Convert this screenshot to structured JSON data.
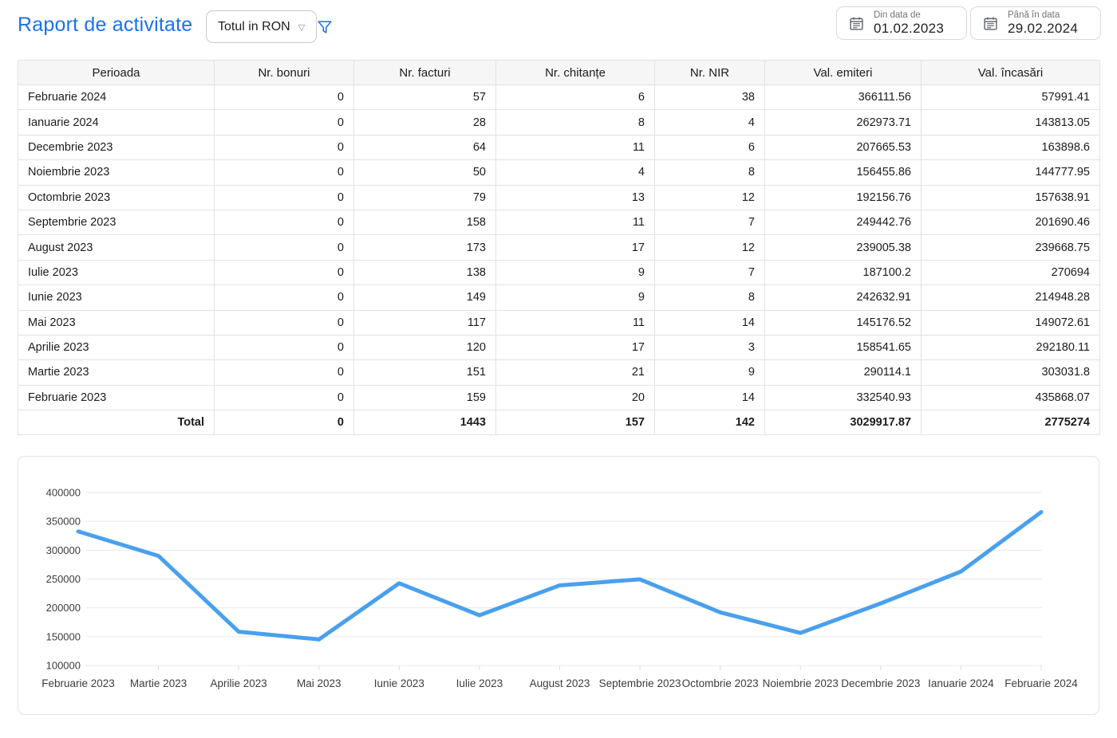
{
  "header": {
    "title": "Raport de activitate",
    "currency_dropdown": {
      "value": "Totul in RON"
    },
    "date_from": {
      "label": "Din data de",
      "value": "01.02.2023"
    },
    "date_to": {
      "label": "Până în data",
      "value": "29.02.2024"
    }
  },
  "icons": {
    "filter": "funnel-outline",
    "calendar": "calendar-outline",
    "chevron": "▽"
  },
  "colors": {
    "accent": "#1a73e8",
    "chart_line": "#49a0ed",
    "table_border": "#e2e2e2",
    "header_bg": "#f6f6f6"
  },
  "table": {
    "columns": [
      "Perioada",
      "Nr. bonuri",
      "Nr. facturi",
      "Nr. chitanțe",
      "Nr. NIR",
      "Val. emiteri",
      "Val. încasări"
    ],
    "rows": [
      [
        "Februarie 2024",
        "0",
        "57",
        "6",
        "38",
        "366111.56",
        "57991.41"
      ],
      [
        "Ianuarie 2024",
        "0",
        "28",
        "8",
        "4",
        "262973.71",
        "143813.05"
      ],
      [
        "Decembrie 2023",
        "0",
        "64",
        "11",
        "6",
        "207665.53",
        "163898.6"
      ],
      [
        "Noiembrie 2023",
        "0",
        "50",
        "4",
        "8",
        "156455.86",
        "144777.95"
      ],
      [
        "Octombrie 2023",
        "0",
        "79",
        "13",
        "12",
        "192156.76",
        "157638.91"
      ],
      [
        "Septembrie 2023",
        "0",
        "158",
        "11",
        "7",
        "249442.76",
        "201690.46"
      ],
      [
        "August 2023",
        "0",
        "173",
        "17",
        "12",
        "239005.38",
        "239668.75"
      ],
      [
        "Iulie 2023",
        "0",
        "138",
        "9",
        "7",
        "187100.2",
        "270694"
      ],
      [
        "Iunie 2023",
        "0",
        "149",
        "9",
        "8",
        "242632.91",
        "214948.28"
      ],
      [
        "Mai 2023",
        "0",
        "117",
        "11",
        "14",
        "145176.52",
        "149072.61"
      ],
      [
        "Aprilie 2023",
        "0",
        "120",
        "17",
        "3",
        "158541.65",
        "292180.11"
      ],
      [
        "Martie 2023",
        "0",
        "151",
        "21",
        "9",
        "290114.1",
        "303031.8"
      ],
      [
        "Februarie 2023",
        "0",
        "159",
        "20",
        "14",
        "332540.93",
        "435868.07"
      ]
    ],
    "total_row": [
      "Total",
      "0",
      "1443",
      "157",
      "142",
      "3029917.87",
      "2775274"
    ]
  },
  "chart_data": {
    "type": "line",
    "title": "",
    "xlabel": "",
    "ylabel": "",
    "categories": [
      "Februarie 2023",
      "Martie 2023",
      "Aprilie 2023",
      "Mai 2023",
      "Iunie 2023",
      "Iulie 2023",
      "August 2023",
      "Septembrie 2023",
      "Octombrie 2023",
      "Noiembrie 2023",
      "Decembrie 2023",
      "Ianuarie 2024",
      "Februarie 2024"
    ],
    "series": [
      {
        "name": "Val. emiteri",
        "values": [
          332540.93,
          290114.1,
          158541.65,
          145176.52,
          242632.91,
          187100.2,
          239005.38,
          249442.76,
          192156.76,
          156455.86,
          207665.53,
          262973.71,
          366111.56
        ]
      }
    ],
    "ylim": [
      100000,
      400000
    ],
    "ytick_step": 50000,
    "grid": true,
    "legend": "none",
    "line_color": "#49a0ed"
  }
}
